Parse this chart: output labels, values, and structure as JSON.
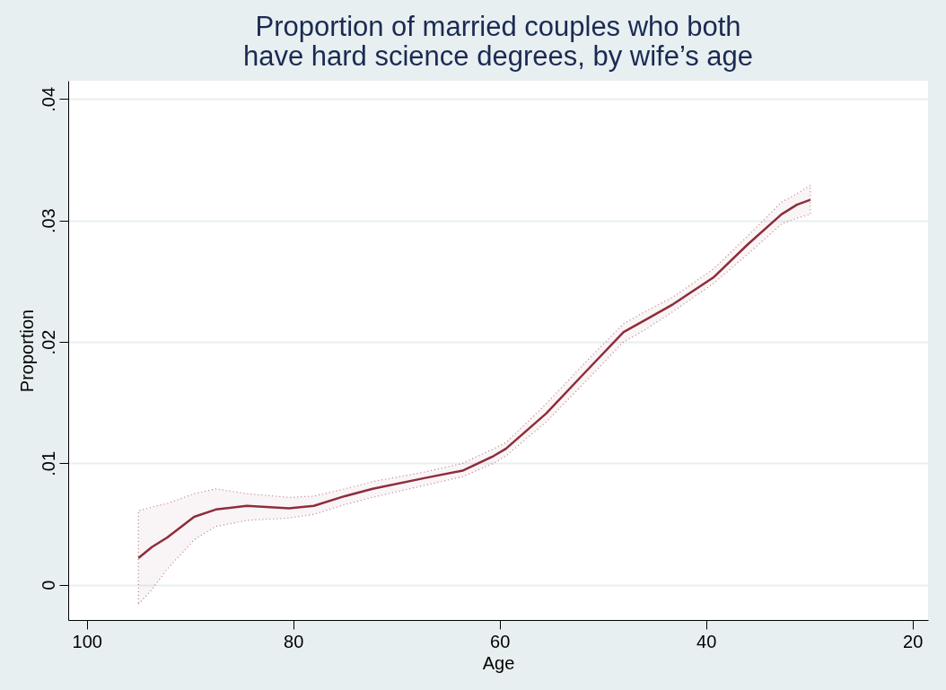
{
  "chart_data": {
    "type": "line",
    "title": [
      "Proportion of married couples who both",
      "have hard science degrees, by wife’s age"
    ],
    "xlabel": "Age",
    "ylabel": "Proportion",
    "x": [
      95,
      93.7,
      92.2,
      89.6,
      87.5,
      84.5,
      80.4,
      78,
      75,
      72.3,
      67.2,
      63.6,
      60.6,
      59.4,
      55.5,
      51.6,
      48,
      45.9,
      43.2,
      39.3,
      36,
      32.7,
      31.2,
      29.9
    ],
    "series": [
      {
        "color": "#8c2d3b",
        "line_style": "solid",
        "values": [
          0.0022,
          0.0031,
          0.0039,
          0.0056,
          0.0062,
          0.0065,
          0.0063,
          0.0065,
          0.0073,
          0.0079,
          0.0088,
          0.0094,
          0.0106,
          0.0112,
          0.0141,
          0.0176,
          0.0208,
          0.0218,
          0.0231,
          0.0253,
          0.028,
          0.0305,
          0.0313,
          0.0317
        ],
        "upper": [
          0.0061,
          0.0064,
          0.0067,
          0.0075,
          0.0079,
          0.0075,
          0.0072,
          0.0073,
          0.0079,
          0.0085,
          0.0093,
          0.01,
          0.0112,
          0.0117,
          0.0149,
          0.0184,
          0.0215,
          0.0225,
          0.0237,
          0.026,
          0.0287,
          0.0315,
          0.0322,
          0.0329
        ],
        "lower": [
          -0.0016,
          -0.0004,
          0.0013,
          0.0037,
          0.0048,
          0.0053,
          0.0055,
          0.0058,
          0.0066,
          0.0072,
          0.0082,
          0.0089,
          0.01,
          0.0106,
          0.0134,
          0.0168,
          0.02,
          0.021,
          0.0225,
          0.0248,
          0.0272,
          0.0297,
          0.0302,
          0.0305
        ]
      }
    ],
    "xlim": [
      101.8,
      18.5
    ],
    "xticks": [
      100,
      80,
      60,
      40,
      20
    ],
    "ylim": [
      -0.0029,
      0.0415
    ],
    "yticks": [
      {
        "value": 0,
        "label": "0"
      },
      {
        "value": 0.01,
        "label": ".01"
      },
      {
        "value": 0.02,
        "label": ".02"
      },
      {
        "value": 0.03,
        "label": ".03"
      },
      {
        "value": 0.04,
        "label": ".04"
      }
    ],
    "grid": "y",
    "marker": "none"
  }
}
